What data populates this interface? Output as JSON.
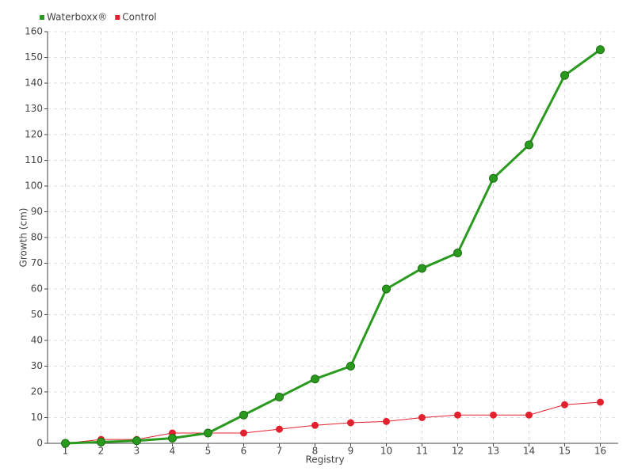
{
  "chart_data": {
    "type": "line",
    "x_label": "Registry",
    "y_label": "Growth (cm)",
    "x": [
      1,
      2,
      3,
      4,
      5,
      6,
      7,
      8,
      9,
      10,
      11,
      12,
      13,
      14,
      15,
      16
    ],
    "series": [
      {
        "name": "Waterboxx®",
        "color": "#2a9a1e",
        "values": [
          0,
          0.5,
          1,
          2,
          4,
          11,
          18,
          25,
          30,
          60,
          68,
          74,
          103,
          116,
          143,
          153
        ]
      },
      {
        "name": "Control",
        "color": "#e3212e",
        "values": [
          0,
          1.5,
          1.5,
          4,
          4,
          4,
          5.5,
          7,
          8,
          8.5,
          10,
          11,
          11,
          11,
          15,
          16
        ]
      }
    ],
    "xlim": [
      0.5,
      16.5
    ],
    "xticks": [
      1,
      2,
      3,
      4,
      5,
      6,
      7,
      8,
      9,
      10,
      11,
      12,
      13,
      14,
      15,
      16
    ],
    "ylim": [
      0,
      160
    ],
    "yticks": [
      0,
      10,
      20,
      30,
      40,
      50,
      60,
      70,
      80,
      90,
      100,
      110,
      120,
      130,
      140,
      150,
      160
    ],
    "grid": true,
    "legend": "top-left"
  }
}
